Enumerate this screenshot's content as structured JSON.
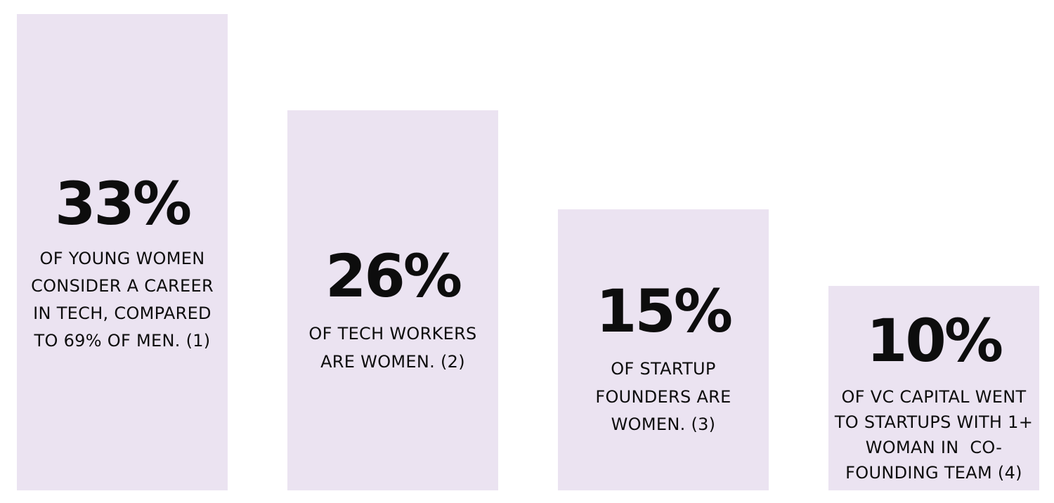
{
  "cards": [
    {
      "stat": "33%",
      "lines": [
        "OF YOUNG WOMEN",
        "CONSIDER A CAREER",
        "IN TECH, COMPARED",
        "TO 69% OF MEN. (1)"
      ]
    },
    {
      "stat": "26%",
      "lines": [
        "OF TECH WORKERS",
        "ARE WOMEN. (2)"
      ]
    },
    {
      "stat": "15%",
      "lines": [
        "OF STARTUP",
        "FOUNDERS ARE",
        "WOMEN. (3)"
      ]
    },
    {
      "stat": "10%",
      "lines": [
        "OF VC CAPITAL WENT",
        "TO STARTUPS WITH 1+",
        "WOMAN IN  CO-",
        "FOUNDING TEAM (4)"
      ]
    }
  ]
}
